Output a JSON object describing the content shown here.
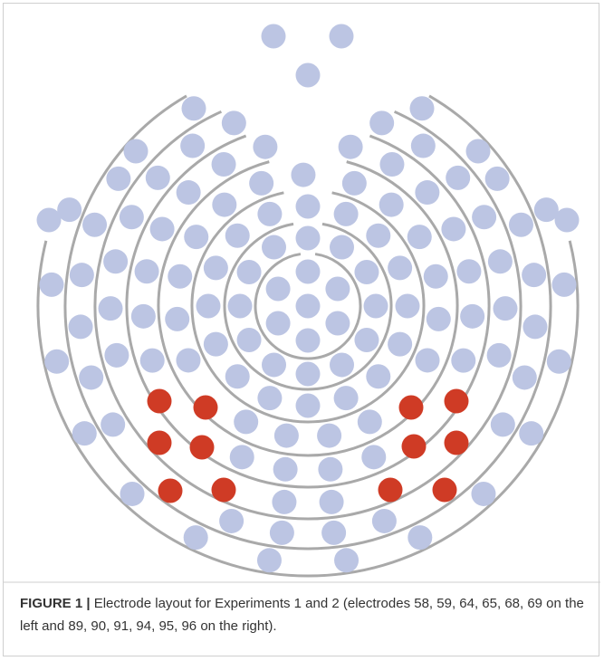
{
  "caption": {
    "label": "FIGURE 1 |",
    "text": "Electrode layout for Experiments 1 and 2 (electrodes 58, 59, 64, 65, 68, 69 on the left and 89, 90, 91, 94, 95, 96 on the right)."
  }
}
